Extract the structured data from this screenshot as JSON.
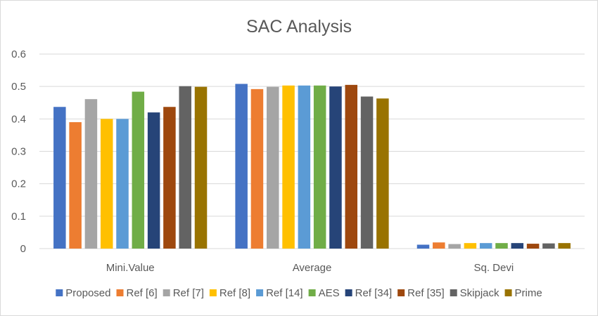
{
  "chart_data": {
    "type": "bar",
    "title": "SAC Analysis",
    "xlabel": "",
    "ylabel": "",
    "ylim": [
      0,
      0.6
    ],
    "yticks": [
      "0",
      "0.1",
      "0.2",
      "0.3",
      "0.4",
      "0.5",
      "0.6"
    ],
    "grid": true,
    "legend_position": "bottom",
    "categories": [
      "Mini.Value",
      "Average",
      "Sq. Devi"
    ],
    "series": [
      {
        "name": "Proposed",
        "color": "#4472c4",
        "values": [
          0.437,
          0.508,
          0.012
        ]
      },
      {
        "name": "Ref [6]",
        "color": "#ed7d31",
        "values": [
          0.39,
          0.492,
          0.019
        ]
      },
      {
        "name": "Ref [7]",
        "color": "#a5a5a5",
        "values": [
          0.461,
          0.499,
          0.014
        ]
      },
      {
        "name": "Ref [8]",
        "color": "#ffc000",
        "values": [
          0.4,
          0.503,
          0.017
        ]
      },
      {
        "name": "Ref [14]",
        "color": "#5b9bd5",
        "values": [
          0.4,
          0.503,
          0.017
        ]
      },
      {
        "name": "AES",
        "color": "#70ad47",
        "values": [
          0.484,
          0.503,
          0.017
        ]
      },
      {
        "name": "Ref [34]",
        "color": "#264478",
        "values": [
          0.42,
          0.5,
          0.017
        ]
      },
      {
        "name": "Ref [35]",
        "color": "#9e480e",
        "values": [
          0.437,
          0.505,
          0.015
        ]
      },
      {
        "name": "Skipjack",
        "color": "#636363",
        "values": [
          0.501,
          0.469,
          0.016
        ]
      },
      {
        "name": "Prime",
        "color": "#997300",
        "values": [
          0.499,
          0.463,
          0.017
        ]
      }
    ]
  }
}
